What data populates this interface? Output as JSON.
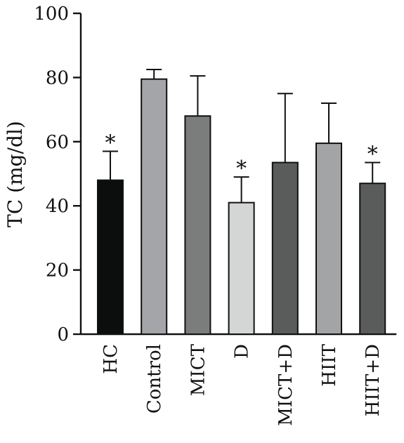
{
  "chart_data": {
    "type": "bar",
    "title": "",
    "xlabel": "",
    "ylabel": "TC (mg/dl)",
    "ylim": [
      0,
      100
    ],
    "yticks": [
      0,
      20,
      40,
      60,
      80,
      100
    ],
    "categories": [
      "HC",
      "Control",
      "MICT",
      "D",
      "MICT+D",
      "HIIT",
      "HIIT+D"
    ],
    "values": [
      48,
      79.5,
      68,
      41,
      53.5,
      59.5,
      47
    ],
    "error_upper": [
      57,
      82.5,
      80.5,
      49,
      75,
      72,
      53.5
    ],
    "significance": [
      "*",
      "",
      "",
      "*",
      "",
      "",
      "*"
    ],
    "bar_colors": [
      "#0c0d0d",
      "#a3a5a8",
      "#7b7d7c",
      "#d4d5d5",
      "#5a5b5b",
      "#a2a4a6",
      "#5a5b5b"
    ],
    "grid": false,
    "legend": "none"
  }
}
